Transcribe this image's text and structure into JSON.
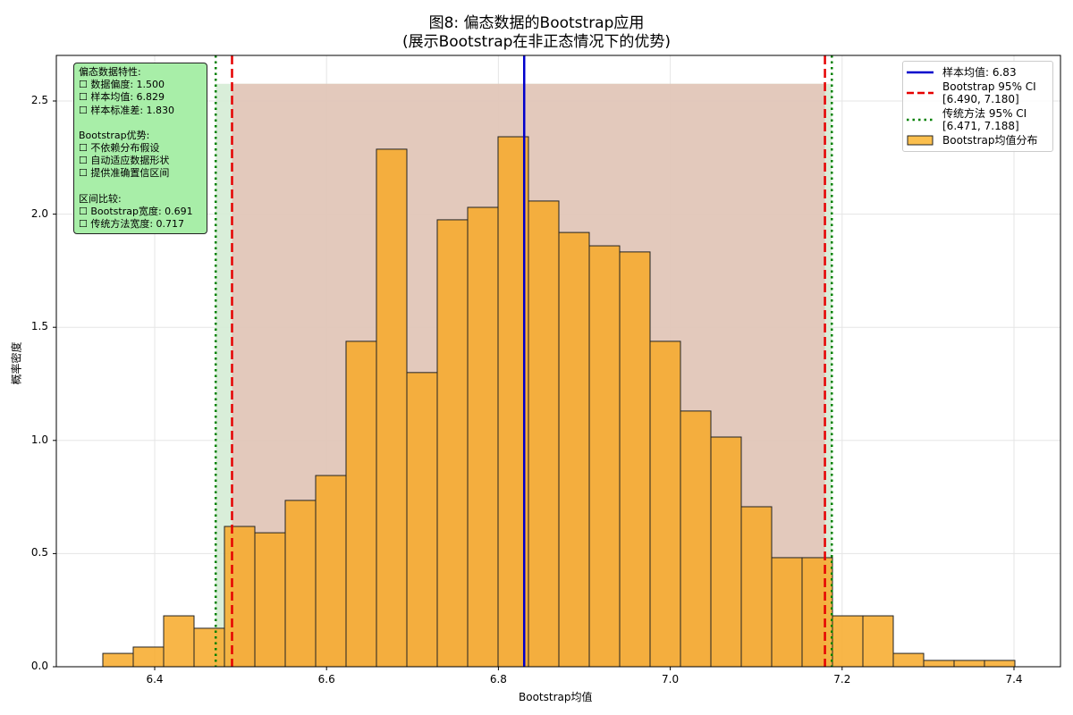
{
  "chart_data": {
    "type": "bar",
    "title": "图8: 偏态数据的Bootstrap应用",
    "subtitle": "(展示Bootstrap在非正态情况下的优势)",
    "xlabel": "Bootstrap均值",
    "ylabel": "概率密度",
    "xlim": [
      6.29,
      7.455
    ],
    "ylim": [
      0,
      2.7
    ],
    "grid": true,
    "legend_position": "upper right",
    "x_ticks": [
      "6.4",
      "6.6",
      "6.8",
      "7.0",
      "7.2",
      "7.4"
    ],
    "y_ticks": [
      "0.0",
      "0.5",
      "1.0",
      "1.5",
      "2.0",
      "2.5"
    ],
    "histogram": {
      "bin_start": 6.344,
      "bin_width": 0.0354,
      "values": [
        0.059,
        0.087,
        0.225,
        0.17,
        0.62,
        0.592,
        0.735,
        0.845,
        1.438,
        2.287,
        1.3,
        1.975,
        2.03,
        2.342,
        2.058,
        1.919,
        1.86,
        1.833,
        1.438,
        1.13,
        1.015,
        0.707,
        0.482,
        0.482,
        0.225,
        0.225,
        0.059,
        0.028,
        0.028,
        0.028
      ],
      "color": "#f7a928",
      "edge_color": "#222222"
    },
    "lines": {
      "sample_mean": 6.83,
      "bootstrap_ci": [
        6.49,
        7.18
      ],
      "traditional_ci": [
        6.471,
        7.188
      ]
    },
    "shaded_regions": [
      {
        "x": [
          6.471,
          7.188
        ],
        "top": 2.576,
        "color": "#d5ecd5"
      },
      {
        "x": [
          6.49,
          7.18
        ],
        "top": 2.576,
        "color": "#e3c4b8"
      }
    ],
    "colors": {
      "mean_line": "#0000cc",
      "bootstrap_ci_line": "#e60000",
      "traditional_ci_line": "#008000",
      "infobox_bg": "#a8eea8"
    }
  },
  "legend": {
    "items": [
      {
        "label": "样本均值: 6.83"
      },
      {
        "label": "Bootstrap 95% CI\n[6.490, 7.180]"
      },
      {
        "label": "传统方法 95% CI\n[6.471, 7.188]"
      },
      {
        "label": "Bootstrap均值分布"
      }
    ]
  },
  "infobox": {
    "section1_title": "偏态数据特性:",
    "section1": [
      "☐ 数据偏度: 1.500",
      "☐ 样本均值: 6.829",
      "☐ 样本标准差: 1.830"
    ],
    "section2_title": "Bootstrap优势:",
    "section2": [
      "☐ 不依赖分布假设",
      "☐ 自动适应数据形状",
      "☐ 提供准确置信区间"
    ],
    "section3_title": "区间比较:",
    "section3": [
      "☐ Bootstrap宽度: 0.691",
      "☐ 传统方法宽度: 0.717"
    ]
  }
}
